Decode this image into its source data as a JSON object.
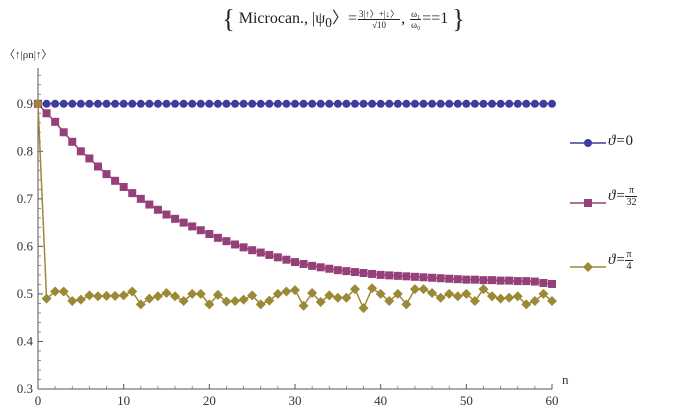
{
  "chart_data": {
    "type": "line",
    "title": {
      "prefix": "Microcan., ",
      "psi": "|ψ",
      "psi_sub": "0",
      "psi_close": "〉=",
      "frac1_num": "3|↑〉+|↓〉",
      "frac1_den": "√10",
      "sep": ", ",
      "frac2_num": "ω₁",
      "frac2_den": "ω₀",
      "tail": "==1"
    },
    "ylabel": "〈↑|ρn|↑〉",
    "xlabel": "n",
    "xlim": [
      0,
      60
    ],
    "ylim": [
      0.3,
      0.95
    ],
    "xticks": [
      0,
      10,
      20,
      30,
      40,
      50,
      60
    ],
    "yticks": [
      0.3,
      0.4,
      0.5,
      0.6,
      0.7,
      0.8,
      0.9
    ],
    "xtick_labels": [
      "0",
      "10",
      "20",
      "30",
      "40",
      "50",
      "60"
    ],
    "ytick_labels": [
      "0.3",
      "0.4",
      "0.5",
      "0.6",
      "0.7",
      "0.8",
      "0.9"
    ],
    "legend_placement": "right",
    "series": [
      {
        "name": "ϑ=0",
        "legend": {
          "prefix": "ϑ=",
          "value": "0",
          "num": "",
          "den": ""
        },
        "marker": "circle",
        "color": "#3d3d9e",
        "values": [
          0.9,
          0.9,
          0.9,
          0.9,
          0.9,
          0.9,
          0.9,
          0.9,
          0.9,
          0.9,
          0.9,
          0.9,
          0.9,
          0.9,
          0.9,
          0.9,
          0.9,
          0.9,
          0.9,
          0.9,
          0.9,
          0.9,
          0.9,
          0.9,
          0.9,
          0.9,
          0.9,
          0.9,
          0.9,
          0.9,
          0.9,
          0.9,
          0.9,
          0.9,
          0.9,
          0.9,
          0.9,
          0.9,
          0.9,
          0.9,
          0.9,
          0.9,
          0.9,
          0.9,
          0.9,
          0.9,
          0.9,
          0.9,
          0.9,
          0.9,
          0.9,
          0.9,
          0.9,
          0.9,
          0.9,
          0.9,
          0.9,
          0.9,
          0.9,
          0.9,
          0.9
        ]
      },
      {
        "name": "ϑ=π/32",
        "legend": {
          "prefix": "ϑ=",
          "value": "",
          "num": "π",
          "den": "32"
        },
        "marker": "square",
        "color": "#96407a",
        "values": [
          0.9,
          0.88,
          0.862,
          0.84,
          0.82,
          0.8,
          0.785,
          0.768,
          0.752,
          0.738,
          0.725,
          0.712,
          0.7,
          0.688,
          0.677,
          0.667,
          0.658,
          0.65,
          0.642,
          0.634,
          0.626,
          0.618,
          0.611,
          0.604,
          0.598,
          0.592,
          0.587,
          0.582,
          0.577,
          0.572,
          0.567,
          0.563,
          0.559,
          0.556,
          0.553,
          0.55,
          0.548,
          0.546,
          0.544,
          0.542,
          0.54,
          0.539,
          0.538,
          0.537,
          0.536,
          0.535,
          0.534,
          0.533,
          0.532,
          0.531,
          0.53,
          0.53,
          0.529,
          0.529,
          0.528,
          0.528,
          0.527,
          0.527,
          0.526,
          0.523,
          0.521
        ]
      },
      {
        "name": "ϑ=π/4",
        "legend": {
          "prefix": "ϑ=",
          "value": "",
          "num": "π",
          "den": "4"
        },
        "marker": "diamond",
        "color": "#9b8a35",
        "values": [
          0.9,
          0.49,
          0.505,
          0.505,
          0.485,
          0.488,
          0.497,
          0.495,
          0.496,
          0.496,
          0.497,
          0.505,
          0.478,
          0.49,
          0.495,
          0.502,
          0.495,
          0.485,
          0.5,
          0.5,
          0.478,
          0.498,
          0.484,
          0.485,
          0.488,
          0.497,
          0.478,
          0.486,
          0.5,
          0.505,
          0.508,
          0.475,
          0.502,
          0.483,
          0.497,
          0.492,
          0.492,
          0.51,
          0.47,
          0.512,
          0.5,
          0.485,
          0.5,
          0.478,
          0.51,
          0.51,
          0.502,
          0.492,
          0.5,
          0.495,
          0.5,
          0.485,
          0.51,
          0.495,
          0.49,
          0.492,
          0.495,
          0.478,
          0.485,
          0.5,
          0.485
        ]
      }
    ]
  }
}
